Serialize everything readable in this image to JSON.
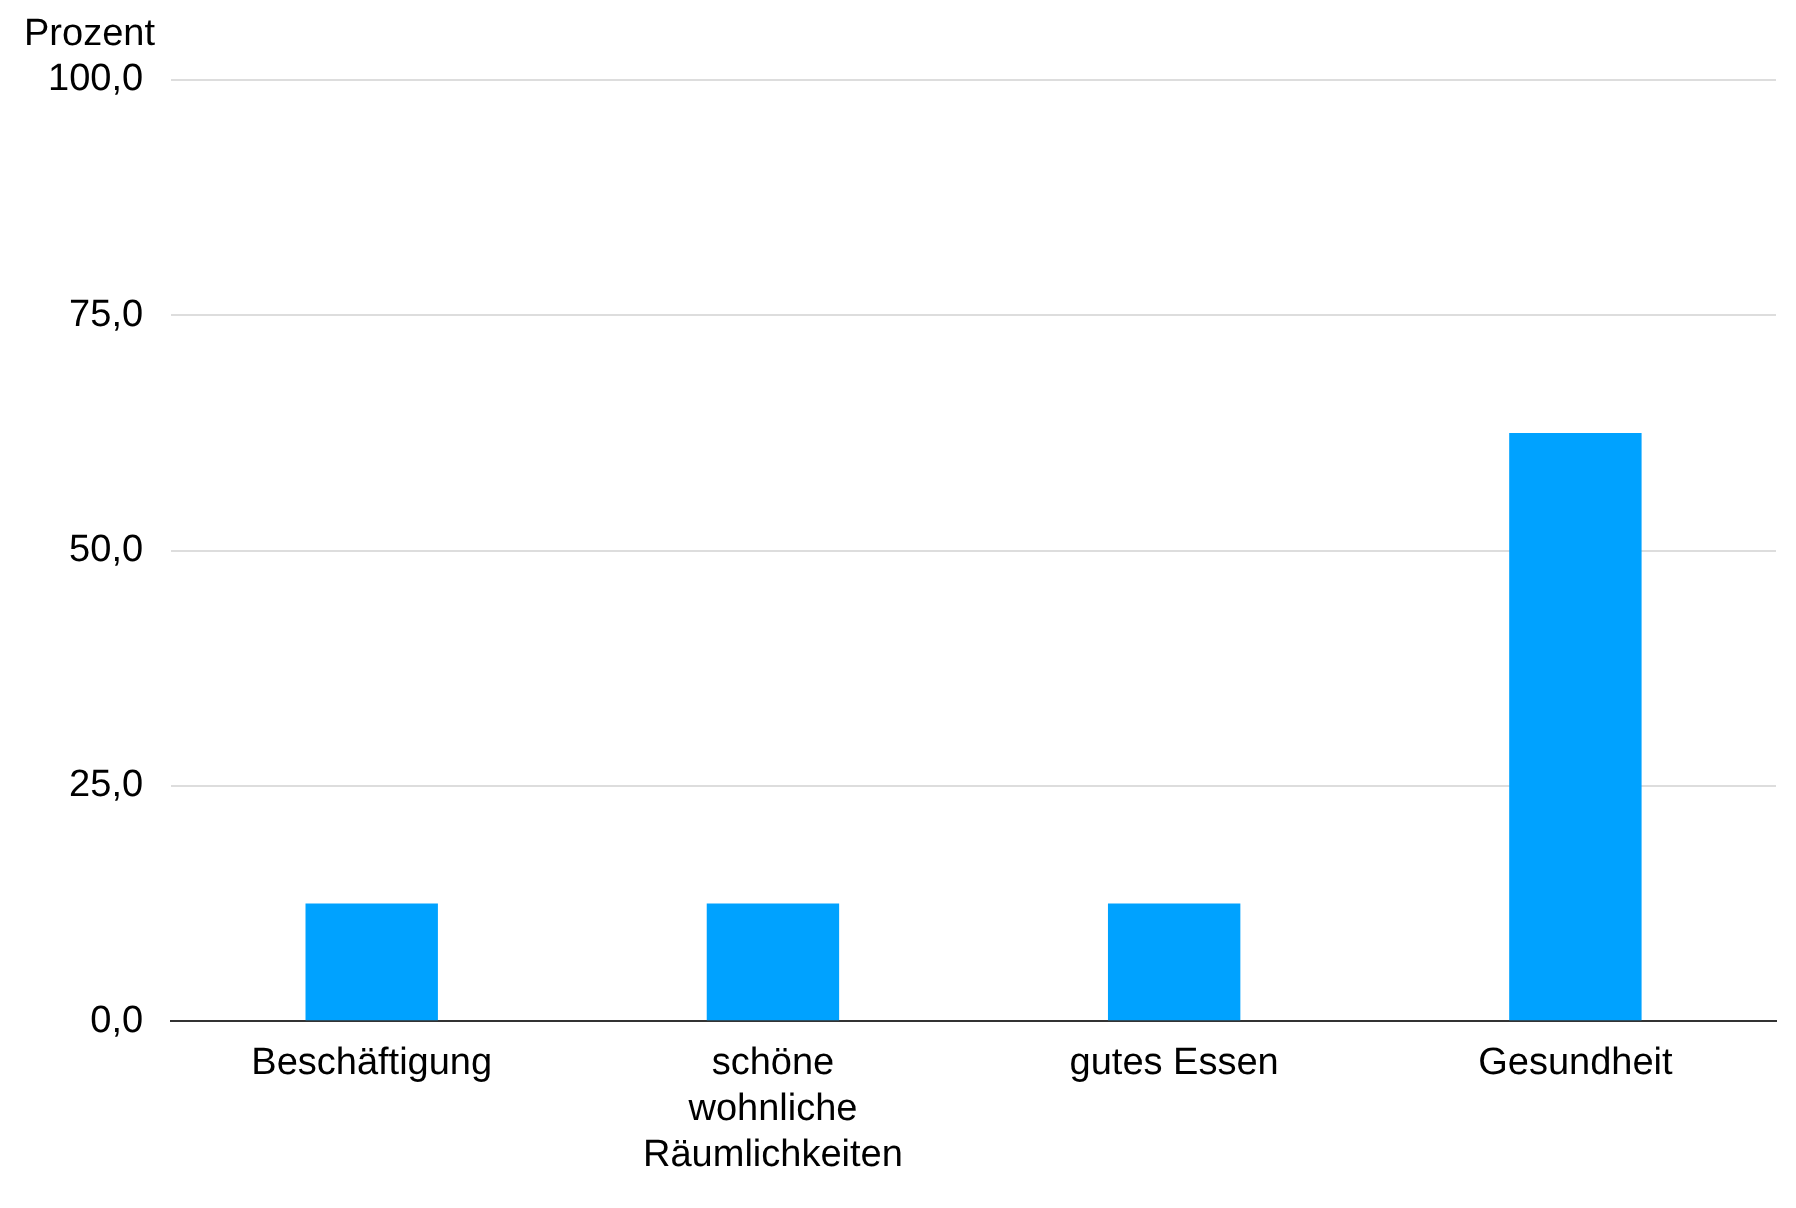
{
  "chart_data": {
    "type": "bar",
    "ylabel": "Prozent",
    "categories": [
      "Beschäftigung",
      "schöne wohnliche Räumlichkeiten",
      "gutes Essen",
      "Gesundheit"
    ],
    "values": [
      12.5,
      12.5,
      12.5,
      62.5
    ],
    "color": "#00a2ff",
    "ylim": [
      0,
      100
    ],
    "yticks": [
      {
        "value": 0,
        "label": "0,0"
      },
      {
        "value": 25,
        "label": "25,0"
      },
      {
        "value": 50,
        "label": "50,0"
      },
      {
        "value": 75,
        "label": "75,0"
      },
      {
        "value": 100,
        "label": "100,0"
      }
    ],
    "grid": "y"
  }
}
